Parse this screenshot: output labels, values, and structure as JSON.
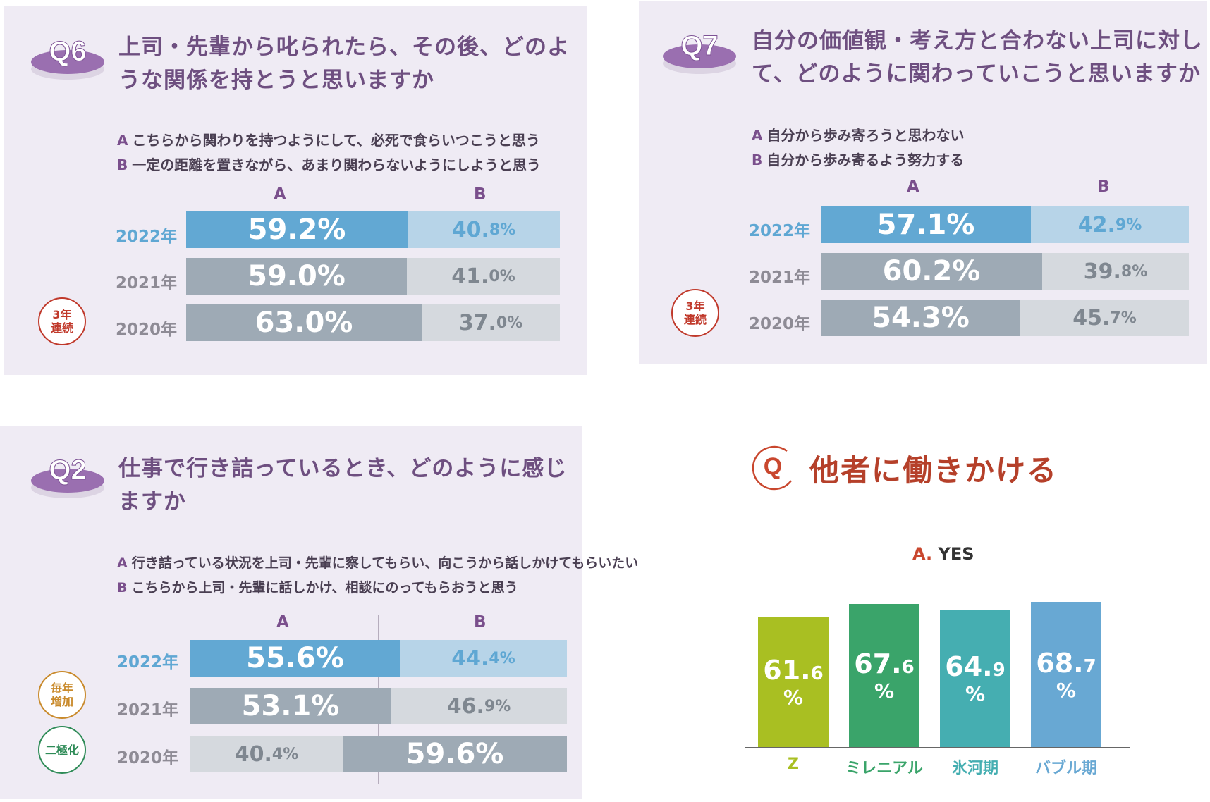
{
  "chart_data": [
    {
      "type": "bar",
      "question_tag": "Q6",
      "title": "上司・先輩から叱られたら、その後、どのような関係を持とうと思いますか",
      "title_lines": [
        "上司・先輩から叱られたら、その後、どのよ",
        "うな関係を持とうと思いますか"
      ],
      "options": [
        {
          "key": "A",
          "text": "こちらから関わりを持つようにして、必死で食らいつこうと思う"
        },
        {
          "key": "B",
          "text": "一定の距離を置きながら、あまり関わらないようにしようと思う"
        }
      ],
      "categories": [
        "2022年",
        "2021年",
        "2020年"
      ],
      "series": [
        {
          "name": "A",
          "values": [
            59.2,
            59.0,
            63.0
          ]
        },
        {
          "name": "B",
          "values": [
            40.8,
            41.0,
            37.0
          ]
        }
      ],
      "labels": {
        "A": [
          [
            "59.2%",
            ""
          ],
          [
            "59.0%",
            ""
          ],
          [
            "63.0%",
            ""
          ]
        ],
        "B": [
          [
            "40.",
            "8%"
          ],
          [
            "41.",
            "0%"
          ],
          [
            "37.",
            "0%"
          ]
        ]
      },
      "badges": [
        {
          "lines": [
            "3年",
            "連続"
          ],
          "color": "#c0392b"
        }
      ]
    },
    {
      "type": "bar",
      "question_tag": "Q7",
      "title": "自分の価値観・考え方と合わない上司に対して、どのように関わっていこうと思いますか",
      "title_lines": [
        "自分の価値観・考え方と合わない上司に対し",
        "て、どのように関わっていこうと思いますか"
      ],
      "options": [
        {
          "key": "A",
          "text": "自分から歩み寄ろうと思わない"
        },
        {
          "key": "B",
          "text": "自分から歩み寄るよう努力する"
        }
      ],
      "categories": [
        "2022年",
        "2021年",
        "2020年"
      ],
      "series": [
        {
          "name": "A",
          "values": [
            57.1,
            60.2,
            54.3
          ]
        },
        {
          "name": "B",
          "values": [
            42.9,
            39.8,
            45.7
          ]
        }
      ],
      "labels": {
        "A": [
          [
            "57.1%",
            ""
          ],
          [
            "60.2%",
            ""
          ],
          [
            "54.3%",
            ""
          ]
        ],
        "B": [
          [
            "42.",
            "9%"
          ],
          [
            "39.",
            "8%"
          ],
          [
            "45.",
            "7%"
          ]
        ]
      },
      "badges": [
        {
          "lines": [
            "3年",
            "連続"
          ],
          "color": "#c0392b"
        }
      ]
    },
    {
      "type": "bar",
      "question_tag": "Q2",
      "title": "仕事で行き詰っているとき、どのように感じますか",
      "title_lines": [
        "仕事で行き詰っているとき、どのように感じ",
        "ますか"
      ],
      "options": [
        {
          "key": "A",
          "text": "行き詰っている状況を上司・先輩に察してもらい、向こうから話しかけてもらいたい"
        },
        {
          "key": "B",
          "text": "こちらから上司・先輩に話しかけ、相談にのってもらおうと思う"
        }
      ],
      "categories": [
        "2022年",
        "2021年",
        "2020年"
      ],
      "series": [
        {
          "name": "A",
          "values": [
            55.6,
            53.1,
            40.4
          ]
        },
        {
          "name": "B",
          "values": [
            44.4,
            46.9,
            59.6
          ]
        }
      ],
      "labels": {
        "A": [
          [
            "55.6%",
            ""
          ],
          [
            "53.1%",
            ""
          ],
          [
            "40.",
            "4%"
          ]
        ],
        "B": [
          [
            "44.",
            "4%"
          ],
          [
            "46.",
            "9%"
          ],
          [
            "59.6%",
            ""
          ]
        ]
      },
      "badges": [
        {
          "lines": [
            "毎年",
            "増加"
          ],
          "color": "#c98a2b"
        },
        {
          "lines": [
            "二極化"
          ],
          "color": "#2e8b57"
        }
      ]
    },
    {
      "type": "bar",
      "title_mark": "Q",
      "title": "他者に働きかける",
      "answer_key": "A.",
      "answer_text": "YES",
      "categories": [
        "Z",
        "ミレニアル",
        "氷河期",
        "バブル期"
      ],
      "series": [
        {
          "name": "A. YES",
          "values": [
            61.6,
            67.6,
            64.9,
            68.7
          ]
        }
      ],
      "labels": [
        [
          "61.",
          "6"
        ],
        [
          "67.",
          "6"
        ],
        [
          "64.",
          "9"
        ],
        [
          "68.",
          "7"
        ]
      ],
      "unit": "%",
      "colors": [
        "#a9bf22",
        "#3aa46a",
        "#45aeb1",
        "#68a8d3"
      ]
    }
  ],
  "colors": {
    "a_current": "#62a8d3",
    "b_current": "#b7d4e8",
    "a_past": "#9eaab5",
    "b_past": "#d5d9de",
    "question_badge": "#9a6fb0",
    "year_current": "#5fa7d3",
    "year_past": "#8e8b95",
    "panel_bg": "#efebf4"
  },
  "icons": [
    "question-disc-icon",
    "q-circle-icon"
  ]
}
